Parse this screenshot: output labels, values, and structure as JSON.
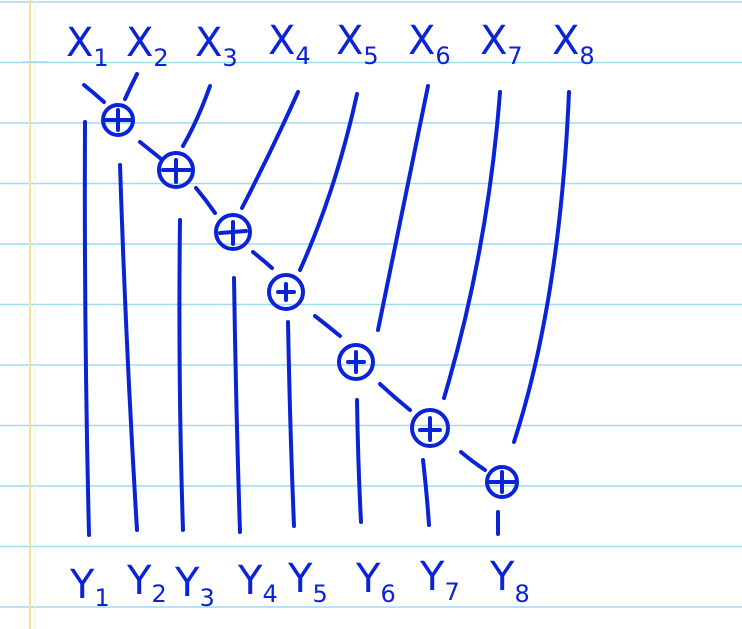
{
  "diagram": {
    "inputs": [
      {
        "letter": "X",
        "index": "1"
      },
      {
        "letter": "X",
        "index": "2"
      },
      {
        "letter": "X",
        "index": "3"
      },
      {
        "letter": "X",
        "index": "4"
      },
      {
        "letter": "X",
        "index": "5"
      },
      {
        "letter": "X",
        "index": "6"
      },
      {
        "letter": "X",
        "index": "7"
      },
      {
        "letter": "X",
        "index": "8"
      }
    ],
    "outputs": [
      {
        "letter": "Y",
        "index": "1"
      },
      {
        "letter": "Y",
        "index": "2"
      },
      {
        "letter": "Y",
        "index": "3"
      },
      {
        "letter": "Y",
        "index": "4"
      },
      {
        "letter": "Y",
        "index": "5"
      },
      {
        "letter": "Y",
        "index": "6"
      },
      {
        "letter": "Y",
        "index": "7"
      },
      {
        "letter": "Y",
        "index": "8"
      }
    ],
    "operator_symbol": "+",
    "operator_count": 7
  },
  "colors": {
    "ink": "#0a23d6",
    "rule_line": "#9fdcf0",
    "margin_line": "#f2e3a0",
    "paper": "#ffffff"
  }
}
